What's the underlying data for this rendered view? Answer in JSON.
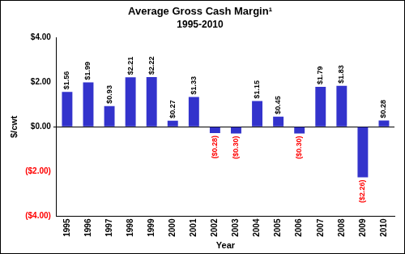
{
  "chart_data": {
    "type": "bar",
    "title": "Average Gross Cash Margin¹",
    "subtitle": "1995-2010",
    "x_label": "Year",
    "y_label": "$/cwt",
    "categories": [
      "1995",
      "1996",
      "1997",
      "1998",
      "1999",
      "2000",
      "2001",
      "2002",
      "2003",
      "2004",
      "2005",
      "2006",
      "2007",
      "2008",
      "2009",
      "2010"
    ],
    "values": [
      1.56,
      1.99,
      0.93,
      2.21,
      2.22,
      0.27,
      1.33,
      -0.28,
      -0.3,
      1.15,
      0.45,
      -0.3,
      1.79,
      1.83,
      -2.26,
      0.28
    ],
    "value_labels": [
      "$1.56",
      "$1.99",
      "$0.93",
      "$2.21",
      "$2.22",
      "$0.27",
      "$1.33",
      "($0.28)",
      "($0.30)",
      "$1.15",
      "$0.45",
      "($0.30)",
      "$1.79",
      "$1.83",
      "($2.26)",
      "$0.28"
    ],
    "color": "#3333cc",
    "ylim": [
      -4,
      4
    ],
    "yticks": [
      {
        "value": -4,
        "label": "($4.00)"
      },
      {
        "value": -2,
        "label": "($2.00)"
      },
      {
        "value": 0,
        "label": "$0.00"
      },
      {
        "value": 2,
        "label": "$2.00"
      },
      {
        "value": 4,
        "label": "$4.00"
      }
    ],
    "grid": false,
    "data_labels": true
  }
}
